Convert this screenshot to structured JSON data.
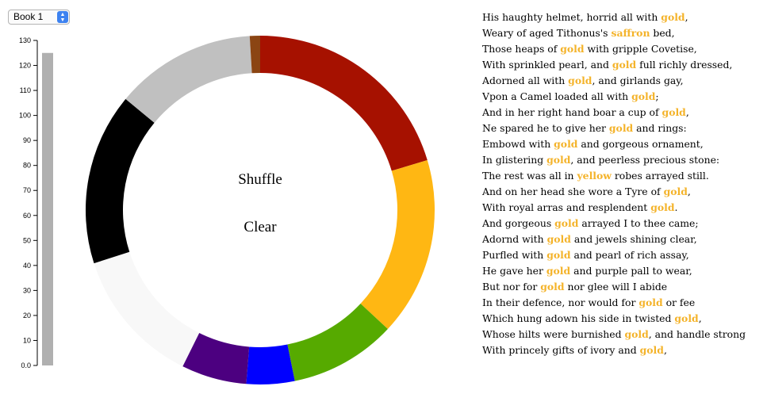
{
  "book_select": {
    "value": "Book 1"
  },
  "controls": {
    "shuffle": "Shuffle",
    "clear": "Clear"
  },
  "highlight_color": "#f4b32a",
  "chart_data": [
    {
      "type": "bar",
      "orientation": "vertical",
      "ylim": [
        0,
        130
      ],
      "yticks": [
        "0.0",
        "10",
        "20",
        "30",
        "40",
        "50",
        "60",
        "70",
        "80",
        "90",
        "100",
        "110",
        "120",
        "130"
      ],
      "values": [
        125
      ],
      "bar_color": "#b0b0b0"
    },
    {
      "type": "pie",
      "style": "donut",
      "slices": [
        {
          "color": "#a61100",
          "value": 64
        },
        {
          "color": "#ffb713",
          "value": 52
        },
        {
          "color": "#56aa00",
          "value": 31
        },
        {
          "color": "#0000ff",
          "value": 14
        },
        {
          "color": "#4c0080",
          "value": 19
        },
        {
          "color": "#f8f8f8",
          "value": 40
        },
        {
          "color": "#000000",
          "value": 50
        },
        {
          "color": "#c0c0c0",
          "value": 41
        },
        {
          "color": "#8b4513",
          "value": 3
        }
      ]
    }
  ],
  "poem": {
    "lines": [
      [
        {
          "t": "His haughty helmet, horrid all with "
        },
        {
          "t": "gold",
          "hl": true
        },
        {
          "t": ","
        }
      ],
      [
        {
          "t": "Weary of aged Tithonus's "
        },
        {
          "t": "saffron",
          "hl": true
        },
        {
          "t": " bed,"
        }
      ],
      [
        {
          "t": "Those heaps of "
        },
        {
          "t": "gold",
          "hl": true
        },
        {
          "t": " with gripple Covetise,"
        }
      ],
      [
        {
          "t": "With sprinkled pearl, and "
        },
        {
          "t": "gold",
          "hl": true
        },
        {
          "t": " full richly dressed,"
        }
      ],
      [
        {
          "t": "Adorned all with "
        },
        {
          "t": "gold",
          "hl": true
        },
        {
          "t": ", and girlands gay,"
        }
      ],
      [
        {
          "t": "Vpon a Camel loaded all with "
        },
        {
          "t": "gold",
          "hl": true
        },
        {
          "t": ";"
        }
      ],
      [
        {
          "t": "And in her right hand boar a cup of "
        },
        {
          "t": "gold",
          "hl": true
        },
        {
          "t": ","
        }
      ],
      [
        {
          "t": "Ne spared he to give her "
        },
        {
          "t": "gold",
          "hl": true
        },
        {
          "t": " and rings:"
        }
      ],
      [
        {
          "t": "Embowd with "
        },
        {
          "t": "gold",
          "hl": true
        },
        {
          "t": " and gorgeous ornament,"
        }
      ],
      [
        {
          "t": "In glistering "
        },
        {
          "t": "gold",
          "hl": true
        },
        {
          "t": ", and peerless precious stone:"
        }
      ],
      [
        {
          "t": "The rest was all in "
        },
        {
          "t": "yellow",
          "hl": true
        },
        {
          "t": " robes arrayed still."
        }
      ],
      [
        {
          "t": "And on her head she wore a Tyre of "
        },
        {
          "t": "gold",
          "hl": true
        },
        {
          "t": ","
        }
      ],
      [
        {
          "t": "With royal arras and resplendent "
        },
        {
          "t": "gold",
          "hl": true
        },
        {
          "t": "."
        }
      ],
      [
        {
          "t": "And gorgeous "
        },
        {
          "t": "gold",
          "hl": true
        },
        {
          "t": " arrayed I to thee came;"
        }
      ],
      [
        {
          "t": "Adornd with "
        },
        {
          "t": "gold",
          "hl": true
        },
        {
          "t": " and jewels shining clear,"
        }
      ],
      [
        {
          "t": "Purfled with "
        },
        {
          "t": "gold",
          "hl": true
        },
        {
          "t": " and pearl of rich assay,"
        }
      ],
      [
        {
          "t": "He gave her "
        },
        {
          "t": "gold",
          "hl": true
        },
        {
          "t": " and purple pall to wear,"
        }
      ],
      [
        {
          "t": "But nor for "
        },
        {
          "t": "gold",
          "hl": true
        },
        {
          "t": " nor glee will I abide"
        }
      ],
      [
        {
          "t": "In their defence, nor would for "
        },
        {
          "t": "gold",
          "hl": true
        },
        {
          "t": " or fee"
        }
      ],
      [
        {
          "t": "Which hung adown his side in twisted "
        },
        {
          "t": "gold",
          "hl": true
        },
        {
          "t": ","
        }
      ],
      [
        {
          "t": "Whose hilts were burnished "
        },
        {
          "t": "gold",
          "hl": true
        },
        {
          "t": ", and handle strong"
        }
      ],
      [
        {
          "t": "With princely gifts of ivory and "
        },
        {
          "t": "gold",
          "hl": true
        },
        {
          "t": ","
        }
      ]
    ]
  }
}
